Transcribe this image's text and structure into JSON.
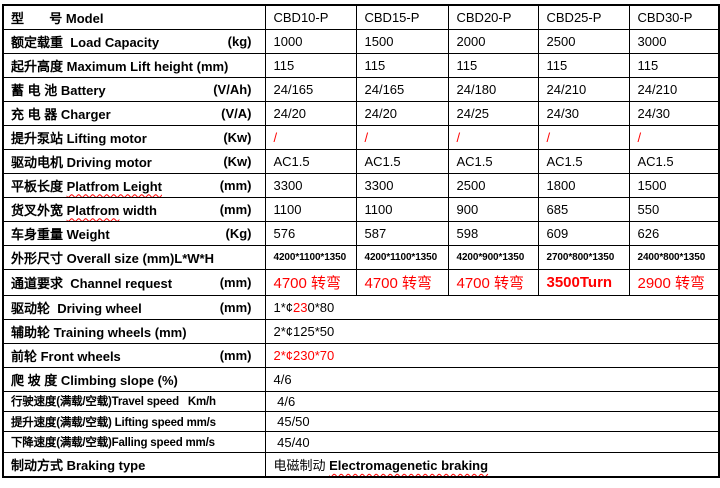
{
  "colors": {
    "red": "#ff0000",
    "border": "#000000",
    "background": "#ffffff"
  },
  "table": {
    "header": {
      "label": "型       号 Model",
      "models": [
        "CBD10-P",
        "CBD15-P",
        "CBD20-P",
        "CBD25-P",
        "CBD30-P"
      ]
    },
    "rows": [
      {
        "key": "load-capacity",
        "label": [
          {
            "t": "额定载重  Load Capacity"
          }
        ],
        "unit": "(kg)",
        "values": [
          "1000",
          "1500",
          "2000",
          "2500",
          "3000"
        ]
      },
      {
        "key": "lift-height",
        "label": [
          {
            "t": "起升高度 Maximum Lift height (mm)"
          }
        ],
        "unit": "",
        "values": [
          "115",
          "115",
          "115",
          "115",
          "115"
        ]
      },
      {
        "key": "battery",
        "label": [
          {
            "t": "蓄 电 池 Battery"
          }
        ],
        "unit": "(V/Ah)",
        "values": [
          "24/165",
          "24/165",
          "24/180",
          "24/210",
          "24/210"
        ]
      },
      {
        "key": "charger",
        "label": [
          {
            "t": "充 电 器 Charger"
          }
        ],
        "unit": "(V/A)",
        "values": [
          "24/20",
          "24/20",
          "24/25",
          "24/30",
          "24/30"
        ]
      },
      {
        "key": "lifting-motor",
        "label": [
          {
            "t": "提升泵站 Lifting motor"
          }
        ],
        "unit": "(Kw)",
        "vclass": "vr",
        "values": [
          "/",
          "/",
          "/",
          "/",
          "/"
        ]
      },
      {
        "key": "driving-motor",
        "label": [
          {
            "t": "驱动电机 Driving motor"
          }
        ],
        "unit": "(Kw)",
        "values": [
          "AC1.5",
          "AC1.5",
          "AC1.5",
          "AC1.5",
          "AC1.5"
        ]
      },
      {
        "key": "platform-length",
        "label": [
          {
            "t": "平板长度 "
          },
          {
            "t": "Platfrom Leight",
            "wavy": true
          }
        ],
        "unit": "(mm)",
        "values": [
          "3300",
          "3300",
          "2500",
          "1800",
          "1500"
        ]
      },
      {
        "key": "platform-width",
        "label": [
          {
            "t": "货叉外宽 "
          },
          {
            "t": "Platfrom",
            "wavy": true
          },
          {
            "t": " width"
          }
        ],
        "unit": "(mm)",
        "values": [
          "1100",
          "1100",
          "900",
          "685",
          "550"
        ]
      },
      {
        "key": "weight",
        "label": [
          {
            "t": "车身重量 Weight"
          }
        ],
        "unit": "(Kg)",
        "values": [
          "576",
          "587",
          "598",
          "609",
          "626"
        ]
      },
      {
        "key": "overall-size",
        "label": [
          {
            "t": "外形尺寸 Overall size (mm)L*W*H"
          }
        ],
        "unit": "",
        "vclass": "vd",
        "values": [
          "4200*1100*1350",
          "4200*1100*1350",
          "4200*900*1350",
          "2700*800*1350",
          "2400*800*1350"
        ]
      },
      {
        "key": "channel-request",
        "label": [
          {
            "t": "通道要求  Channel request"
          }
        ],
        "unit": "(mm)",
        "vclass": "vc",
        "values": [
          "4700 转弯",
          "4700 转弯",
          "4700 转弯",
          {
            "t": "3500Turn",
            "bold": true
          },
          "2900 转弯"
        ]
      },
      {
        "key": "driving-wheel",
        "label": [
          {
            "t": "驱动轮  Driving wheel"
          }
        ],
        "unit": "(mm)",
        "merged": [
          {
            "t": "1*¢"
          },
          {
            "t": "23",
            "red": true
          },
          {
            "t": "0*80"
          }
        ]
      },
      {
        "key": "training-wheels",
        "label": [
          {
            "t": "辅助轮 Training wheels (mm)"
          }
        ],
        "unit": "",
        "merged": [
          {
            "t": "2*¢125*50"
          }
        ]
      },
      {
        "key": "front-wheels",
        "label": [
          {
            "t": "前轮 Front wheels"
          }
        ],
        "unit": "(mm)",
        "merged": [
          {
            "t": "2*¢230*70",
            "red": true
          }
        ]
      },
      {
        "key": "climbing-slope",
        "label": [
          {
            "t": "爬 坡 度 Climbing slope (%)"
          }
        ],
        "unit": "",
        "merged": [
          {
            "t": "4/6"
          }
        ]
      },
      {
        "key": "travel-speed",
        "label": [
          {
            "t": "行驶速度(满载/空载)Travel speed   Km/h"
          }
        ],
        "unit": "",
        "lclass": "tight",
        "merged": [
          {
            "t": " 4/6"
          }
        ]
      },
      {
        "key": "lifting-speed",
        "label": [
          {
            "t": "提升速度(满载/空载) Lifting speed mm/s"
          }
        ],
        "unit": "",
        "lclass": "tight",
        "merged": [
          {
            "t": " 45/50"
          }
        ]
      },
      {
        "key": "falling-speed",
        "label": [
          {
            "t": "下降速度(满载/空载)Falling speed mm/s"
          }
        ],
        "unit": "",
        "lclass": "tight",
        "merged": [
          {
            "t": " 45/40"
          }
        ]
      },
      {
        "key": "braking-type",
        "label": [
          {
            "t": "制动方式 Braking type"
          }
        ],
        "unit": "",
        "merged": [
          {
            "t": "电磁制动 "
          },
          {
            "t": "Electromagenetic braking",
            "bold": true,
            "wavy": true
          }
        ]
      }
    ]
  }
}
